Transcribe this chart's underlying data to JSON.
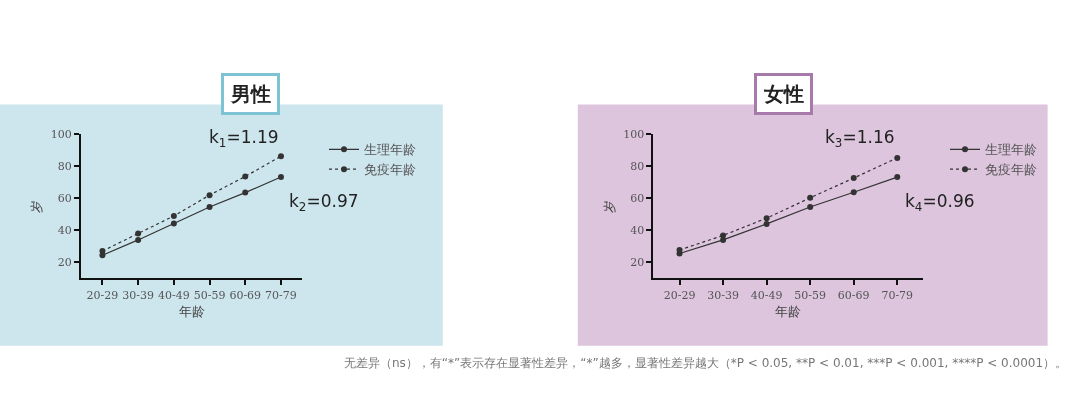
{
  "chart_data": [
    {
      "type": "line",
      "title": "男性",
      "xlabel": "年龄",
      "ylabel": "岁",
      "categories": [
        "20-29",
        "30-39",
        "40-49",
        "50-59",
        "60-69",
        "70-79"
      ],
      "ylim": [
        10,
        100
      ],
      "yticks": [
        20,
        40,
        60,
        80,
        100
      ],
      "grid": false,
      "legend": "right",
      "marker": "circle",
      "series": [
        {
          "name": "生理年龄",
          "color": "#333333",
          "line_style": "solid",
          "values": [
            24.4,
            34,
            44.3,
            54.6,
            63.6,
            73.3
          ]
        },
        {
          "name": "免疫年龄",
          "color": "#333333",
          "line_style": "dotted",
          "values": [
            27,
            38,
            49,
            62,
            73.7,
            86.3
          ]
        }
      ],
      "annotations": [
        "k$_{1}$=1.19",
        "k$_{2}$=0.97"
      ]
    },
    {
      "type": "line",
      "title": "女性",
      "xlabel": "年龄",
      "ylabel": "岁",
      "categories": [
        "20-29",
        "30-39",
        "40-49",
        "50-59",
        "60-69",
        "70-79"
      ],
      "ylim": [
        10,
        100
      ],
      "yticks": [
        20,
        40,
        60,
        80,
        100
      ],
      "grid": false,
      "legend": "right",
      "marker": "circle",
      "series": [
        {
          "name": "生理年龄",
          "color": "#333333",
          "line_style": "solid",
          "values": [
            25.5,
            34,
            44,
            54.6,
            63.8,
            73.3
          ]
        },
        {
          "name": "免疫年龄",
          "color": "#333333",
          "line_style": "dotted",
          "values": [
            27.7,
            36.8,
            47.6,
            60.3,
            72.7,
            85.3
          ]
        }
      ],
      "annotations": [
        "k$_{3}$=1.16",
        "k$_{4}$=0.96",
        "无差异（ns），有“*”表示存在显著性差异，“*”越多，显著性差异越大（*P < 0.05, **P < 0.01, ***P < 0.001, ****P < 0.0001）。"
      ]
    }
  ]
}
